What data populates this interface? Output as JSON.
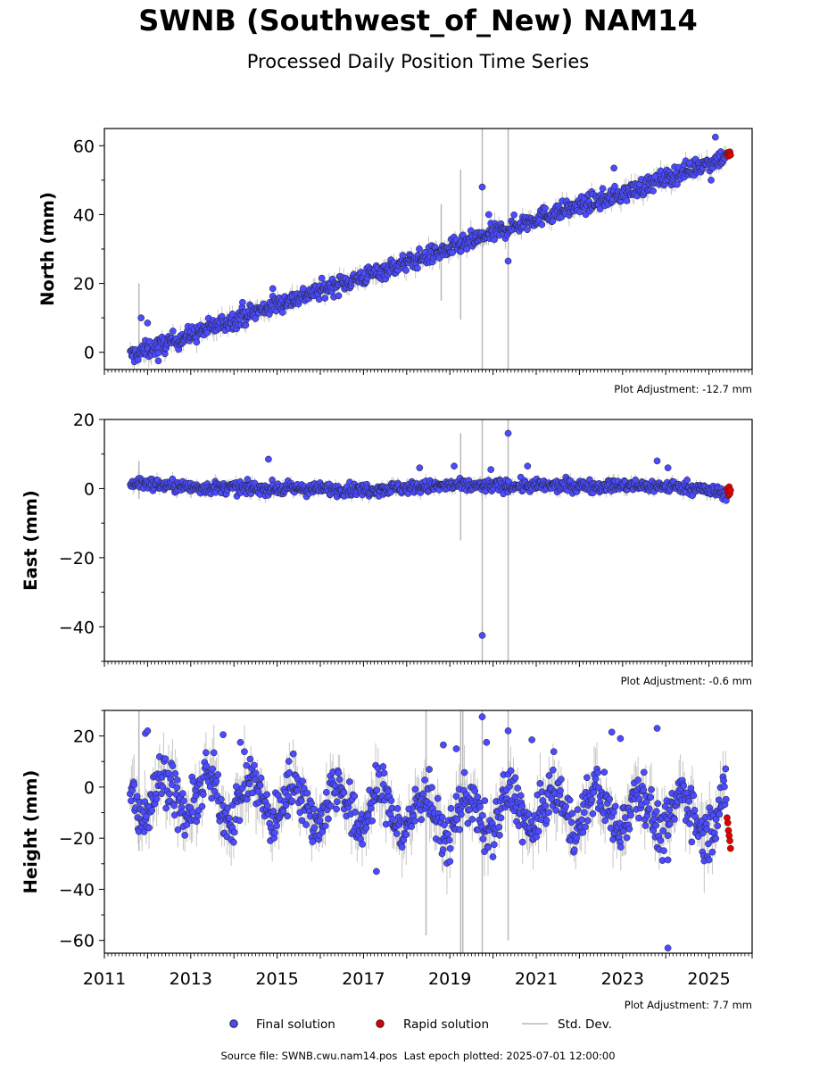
{
  "header": {
    "title": "SWNB (Southwest_of_New) NAM14",
    "subtitle": "Processed Daily Position Time Series"
  },
  "footer": {
    "source_label": "Source file:",
    "source_file": "SWNB.cwu.nam14.pos",
    "last_epoch_label": "Last epoch plotted:",
    "last_epoch": "2025-07-01 12:00:00"
  },
  "legend": {
    "final": "Final solution",
    "rapid": "Rapid solution",
    "stddev": "Std. Dev."
  },
  "colors": {
    "final": "#4b4bff",
    "rapid": "#e00000",
    "stddev": "#b8b8b8",
    "marker_edge": "#202020"
  },
  "chart_data": [
    {
      "type": "scatter",
      "ylabel": "North (mm)",
      "xlim": [
        2011,
        2026
      ],
      "ylim": [
        -5,
        65
      ],
      "yticks": [
        0,
        20,
        40,
        60
      ],
      "adjustment": "Plot Adjustment: -12.7 mm",
      "series": [
        {
          "name": "Final solution",
          "trend_x": [
            2011.6,
            2013.0,
            2015.0,
            2017.0,
            2019.0,
            2021.0,
            2023.0,
            2025.4
          ],
          "trend_y": [
            -1,
            5,
            14,
            22,
            30,
            39,
            46,
            57
          ],
          "scatter_sd": 1.3,
          "outliers": [
            [
              2011.85,
              10
            ],
            [
              2012.0,
              8.5
            ],
            [
              2012.25,
              -2.5
            ],
            [
              2014.2,
              14.5
            ],
            [
              2014.9,
              18.5
            ],
            [
              2019.75,
              48
            ],
            [
              2019.9,
              40
            ],
            [
              2020.35,
              26.5
            ],
            [
              2022.8,
              53.5
            ],
            [
              2023.75,
              51
            ],
            [
              2024.55,
              55
            ],
            [
              2025.15,
              62.5
            ],
            [
              2025.05,
              50
            ]
          ]
        },
        {
          "name": "Rapid solution",
          "x_range": [
            2025.42,
            2025.5
          ],
          "values": [
            57.5,
            58,
            57,
            57.8,
            58.2,
            57.3
          ]
        }
      ],
      "stddev_spikes": [
        [
          2011.8,
          20,
          -3
        ],
        [
          2018.8,
          43,
          15
        ],
        [
          2019.25,
          53,
          9.5
        ],
        [
          2019.75,
          65,
          -5
        ],
        [
          2020.35,
          65,
          -5
        ]
      ]
    },
    {
      "type": "scatter",
      "ylabel": "East (mm)",
      "xlim": [
        2011,
        2026
      ],
      "ylim": [
        -50,
        20
      ],
      "yticks": [
        -40,
        -20,
        0,
        20
      ],
      "adjustment": "Plot Adjustment: -0.6 mm",
      "series": [
        {
          "name": "Final solution",
          "trend_x": [
            2011.6,
            2013.0,
            2015.0,
            2017.0,
            2019.0,
            2021.0,
            2023.0,
            2024.5,
            2025.4
          ],
          "trend_y": [
            1.8,
            0.3,
            0,
            -0.3,
            0.8,
            0.8,
            0.8,
            0.5,
            -1.5
          ],
          "scatter_sd": 0.9,
          "outliers": [
            [
              2014.8,
              8.5
            ],
            [
              2018.3,
              6
            ],
            [
              2019.1,
              6.5
            ],
            [
              2019.75,
              -42.5
            ],
            [
              2019.95,
              5.5
            ],
            [
              2020.35,
              16
            ],
            [
              2020.8,
              6.5
            ],
            [
              2023.8,
              8
            ],
            [
              2024.05,
              6
            ]
          ]
        },
        {
          "name": "Rapid solution",
          "x_range": [
            2025.42,
            2025.5
          ],
          "values": [
            0,
            -1,
            -2,
            0.5,
            -1.5,
            -0.5
          ]
        }
      ],
      "stddev_spikes": [
        [
          2011.8,
          8,
          -3
        ],
        [
          2019.25,
          16,
          -15
        ],
        [
          2019.75,
          20,
          -50
        ],
        [
          2020.35,
          20,
          -50
        ]
      ]
    },
    {
      "type": "scatter",
      "ylabel": "Height (mm)",
      "xlim": [
        2011,
        2026
      ],
      "ylim": [
        -65,
        30
      ],
      "yticks": [
        -60,
        -40,
        -20,
        0,
        20
      ],
      "xticks": [
        2011,
        2013,
        2015,
        2017,
        2019,
        2021,
        2023,
        2025
      ],
      "adjustment": "Plot Adjustment: 7.7 mm",
      "series": [
        {
          "name": "Final solution",
          "trend_x": [
            2011.6,
            2013.0,
            2015.0,
            2017.0,
            2019.0,
            2021.0,
            2023.0,
            2025.4
          ],
          "trend_y": [
            -2,
            -4,
            -5,
            -8,
            -12,
            -9,
            -8,
            -12
          ],
          "seasonal_amplitude": 8,
          "scatter_sd": 5,
          "outliers": [
            [
              2011.95,
              21
            ],
            [
              2012.0,
              22
            ],
            [
              2013.75,
              20.5
            ],
            [
              2014.15,
              17.5
            ],
            [
              2017.3,
              -33
            ],
            [
              2018.85,
              16.5
            ],
            [
              2019.15,
              15
            ],
            [
              2019.75,
              27.5
            ],
            [
              2019.85,
              17.5
            ],
            [
              2020.35,
              22
            ],
            [
              2020.9,
              18.5
            ],
            [
              2022.75,
              21.5
            ],
            [
              2022.95,
              19
            ],
            [
              2023.8,
              23
            ],
            [
              2024.05,
              -28.5
            ],
            [
              2024.05,
              -63
            ]
          ]
        },
        {
          "name": "Rapid solution",
          "x_range": [
            2025.42,
            2025.5
          ],
          "values": [
            -12,
            -14,
            -17,
            -19,
            -21,
            -24
          ]
        }
      ],
      "stddev_spikes": [
        [
          2011.8,
          30,
          -25
        ],
        [
          2018.45,
          30,
          -58
        ],
        [
          2019.25,
          30,
          -65
        ],
        [
          2019.3,
          30,
          -65
        ],
        [
          2019.75,
          30,
          -65
        ],
        [
          2020.35,
          30,
          -60
        ]
      ]
    }
  ]
}
